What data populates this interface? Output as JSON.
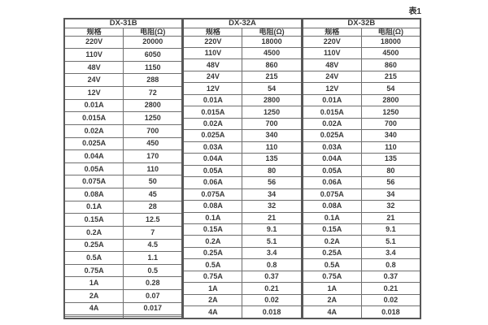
{
  "page": {
    "caption": "表1"
  },
  "table": {
    "groups": [
      {
        "title": "DX-31B",
        "col_headers": [
          "规格",
          "电阻(Ω)"
        ],
        "rows": [
          [
            "220V",
            "20000"
          ],
          [
            "110V",
            "6050"
          ],
          [
            "48V",
            "1150"
          ],
          [
            "24V",
            "288"
          ],
          [
            "12V",
            "72"
          ],
          [
            "0.01A",
            "2800"
          ],
          [
            "0.015A",
            "1250"
          ],
          [
            "0.02A",
            "700"
          ],
          [
            "0.025A",
            "450"
          ],
          [
            "0.04A",
            "170"
          ],
          [
            "0.05A",
            "110"
          ],
          [
            "0.075A",
            "50"
          ],
          [
            "0.08A",
            "45"
          ],
          [
            "0.1A",
            "28"
          ],
          [
            "0.15A",
            "12.5"
          ],
          [
            "0.2A",
            "7"
          ],
          [
            "0.25A",
            "4.5"
          ],
          [
            "0.5A",
            "1.1"
          ],
          [
            "0.75A",
            "0.5"
          ],
          [
            "1A",
            "0.28"
          ],
          [
            "2A",
            "0.07"
          ],
          [
            "4A",
            "0.017"
          ],
          [
            "",
            ""
          ],
          [
            "",
            ""
          ]
        ]
      },
      {
        "title": "DX-32A",
        "col_headers": [
          "规格",
          "电阻(Ω)"
        ],
        "rows": [
          [
            "220V",
            "18000"
          ],
          [
            "110V",
            "4500"
          ],
          [
            "48V",
            "860"
          ],
          [
            "24V",
            "215"
          ],
          [
            "12V",
            "54"
          ],
          [
            "0.01A",
            "2800"
          ],
          [
            "0.015A",
            "1250"
          ],
          [
            "0.02A",
            "700"
          ],
          [
            "0.025A",
            "340"
          ],
          [
            "0.03A",
            "110"
          ],
          [
            "0.04A",
            "135"
          ],
          [
            "0.05A",
            "80"
          ],
          [
            "0.06A",
            "56"
          ],
          [
            "0.075A",
            "34"
          ],
          [
            "0.08A",
            "32"
          ],
          [
            "0.1A",
            "21"
          ],
          [
            "0.15A",
            "9.1"
          ],
          [
            "0.2A",
            "5.1"
          ],
          [
            "0.25A",
            "3.4"
          ],
          [
            "0.5A",
            "0.8"
          ],
          [
            "0.75A",
            "0.37"
          ],
          [
            "1A",
            "0.21"
          ],
          [
            "2A",
            "0.02"
          ],
          [
            "4A",
            "0.018"
          ]
        ]
      },
      {
        "title": "DX-32B",
        "col_headers": [
          "规格",
          "电阻(Ω)"
        ],
        "rows": [
          [
            "220V",
            "18000"
          ],
          [
            "110V",
            "4500"
          ],
          [
            "48V",
            "860"
          ],
          [
            "24V",
            "215"
          ],
          [
            "12V",
            "54"
          ],
          [
            "0.01A",
            "2800"
          ],
          [
            "0.015A",
            "1250"
          ],
          [
            "0.02A",
            "700"
          ],
          [
            "0.025A",
            "340"
          ],
          [
            "0.03A",
            "110"
          ],
          [
            "0.04A",
            "135"
          ],
          [
            "0.05A",
            "80"
          ],
          [
            "0.06A",
            "56"
          ],
          [
            "0.075A",
            "34"
          ],
          [
            "0.08A",
            "32"
          ],
          [
            "0.1A",
            "21"
          ],
          [
            "0.15A",
            "9.1"
          ],
          [
            "0.2A",
            "5.1"
          ],
          [
            "0.25A",
            "3.4"
          ],
          [
            "0.5A",
            "0.8"
          ],
          [
            "0.75A",
            "0.37"
          ],
          [
            "1A",
            "0.21"
          ],
          [
            "2A",
            "0.02"
          ],
          [
            "4A",
            "0.018"
          ]
        ]
      }
    ],
    "colors": {
      "border_outer": "#585858",
      "border_inner": "#6f6f6f",
      "text": "#383838",
      "background": "#ffffff"
    }
  }
}
